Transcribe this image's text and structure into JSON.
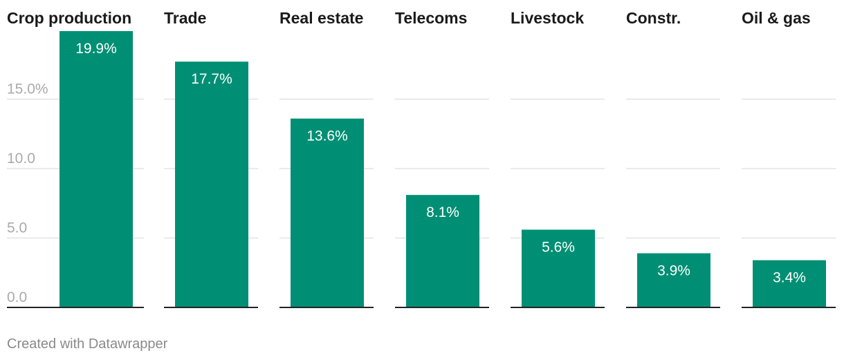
{
  "chart_data": {
    "type": "bar",
    "layout": "small-multiples",
    "categories": [
      "Crop production",
      "Trade",
      "Real estate",
      "Telecoms",
      "Livestock",
      "Constr.",
      "Oil & gas"
    ],
    "values": [
      19.9,
      17.7,
      13.6,
      8.1,
      5.6,
      3.9,
      3.4
    ],
    "value_labels": [
      "19.9%",
      "17.7%",
      "13.6%",
      "8.1%",
      "5.6%",
      "3.9%",
      "3.4%"
    ],
    "y_ticks": [
      0,
      5,
      10,
      15
    ],
    "y_tick_labels": [
      "0.0",
      "5.0",
      "10.0",
      "15.0%"
    ],
    "ylim": [
      0,
      20
    ],
    "grid": true,
    "colors": {
      "bar": "#008f74",
      "grid": "#e3e3e3",
      "baseline": "#222222",
      "tick_text": "#aaaaaa",
      "title_text": "#1a1a1a",
      "value_text": "#ffffff"
    }
  },
  "footer": {
    "credit": "Created with Datawrapper"
  }
}
